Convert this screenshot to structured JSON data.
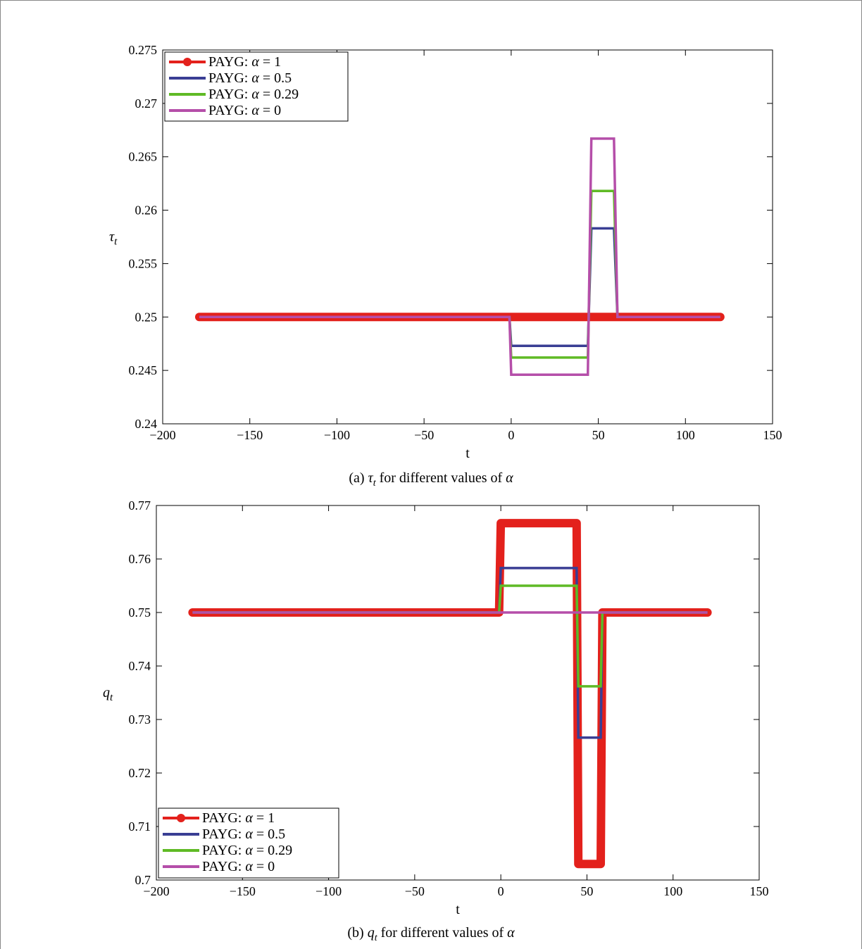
{
  "colors": {
    "red": "#e3211c",
    "blue": "#3a3e94",
    "green": "#5fba25",
    "magenta": "#b54ea9"
  },
  "legend_labels": [
    "PAYG: α = 1",
    "PAYG: α = 0.5",
    "PAYG: α = 0.29",
    "PAYG: α = 0"
  ],
  "captions": {
    "a": "(a) τ_t for different values of α",
    "b": "(b) q_t for different values of α"
  },
  "chart_data": [
    {
      "type": "line",
      "ylabel": "τ_t",
      "xlabel": "t",
      "xlim": [
        -200,
        150
      ],
      "ylim": [
        0.24,
        0.275
      ],
      "xticks": [
        -200,
        -150,
        -100,
        -50,
        0,
        50,
        100,
        150
      ],
      "xtick_labels": [
        "−200",
        "−150",
        "−100",
        "−50",
        "0",
        "50",
        "100",
        "150"
      ],
      "yticks": [
        0.24,
        0.245,
        0.25,
        0.255,
        0.26,
        0.265,
        0.27,
        0.275
      ],
      "ytick_labels": [
        "0.24",
        "0.245",
        "0.25",
        "0.255",
        "0.26",
        "0.265",
        "0.27",
        "0.275"
      ],
      "legend": "top-left",
      "series": [
        {
          "name": "PAYG: α = 1",
          "color": "red",
          "markers": true,
          "x": [
            -179,
            120
          ],
          "y": [
            0.25,
            0.25
          ]
        },
        {
          "name": "PAYG: α = 0.5",
          "color": "blue",
          "markers": false,
          "x": [
            -179,
            -1,
            0,
            44,
            46,
            59,
            61,
            120
          ],
          "y": [
            0.25,
            0.25,
            0.2473,
            0.2473,
            0.2583,
            0.2583,
            0.25,
            0.25
          ]
        },
        {
          "name": "PAYG: α = 0.29",
          "color": "green",
          "markers": false,
          "x": [
            -179,
            -1,
            0,
            44,
            46,
            59,
            61,
            120
          ],
          "y": [
            0.25,
            0.25,
            0.2462,
            0.2462,
            0.2618,
            0.2618,
            0.25,
            0.25
          ]
        },
        {
          "name": "PAYG: α = 0",
          "color": "magenta",
          "markers": false,
          "x": [
            -179,
            -1,
            0,
            44,
            46,
            59,
            61,
            120
          ],
          "y": [
            0.25,
            0.25,
            0.2446,
            0.2446,
            0.2667,
            0.2667,
            0.25,
            0.25
          ]
        }
      ]
    },
    {
      "type": "line",
      "ylabel": "q_t",
      "xlabel": "t",
      "xlim": [
        -200,
        150
      ],
      "ylim": [
        0.7,
        0.77
      ],
      "xticks": [
        -200,
        -150,
        -100,
        -50,
        0,
        50,
        100,
        150
      ],
      "xtick_labels": [
        "−200",
        "−150",
        "−100",
        "−50",
        "0",
        "50",
        "100",
        "150"
      ],
      "yticks": [
        0.7,
        0.71,
        0.72,
        0.73,
        0.74,
        0.75,
        0.76,
        0.77
      ],
      "ytick_labels": [
        "0.7",
        "0.71",
        "0.72",
        "0.73",
        "0.74",
        "0.75",
        "0.76",
        "0.77"
      ],
      "legend": "bottom-left",
      "series": [
        {
          "name": "PAYG: α = 1",
          "color": "red",
          "markers": true,
          "x": [
            -179,
            -1,
            0,
            44,
            45,
            58,
            59,
            120
          ],
          "y": [
            0.75,
            0.75,
            0.7667,
            0.7667,
            0.703,
            0.703,
            0.75,
            0.75
          ]
        },
        {
          "name": "PAYG: α = 0.5",
          "color": "blue",
          "markers": false,
          "x": [
            -179,
            -1,
            0,
            44,
            45,
            58,
            59,
            120
          ],
          "y": [
            0.75,
            0.75,
            0.7583,
            0.7583,
            0.7266,
            0.7266,
            0.75,
            0.75
          ]
        },
        {
          "name": "PAYG: α = 0.29",
          "color": "green",
          "markers": false,
          "x": [
            -179,
            -1,
            0,
            44,
            45,
            58,
            59,
            120
          ],
          "y": [
            0.75,
            0.75,
            0.755,
            0.755,
            0.7362,
            0.7362,
            0.75,
            0.75
          ]
        },
        {
          "name": "PAYG: α = 0",
          "color": "magenta",
          "markers": false,
          "x": [
            -179,
            120
          ],
          "y": [
            0.75,
            0.75
          ]
        }
      ]
    }
  ]
}
